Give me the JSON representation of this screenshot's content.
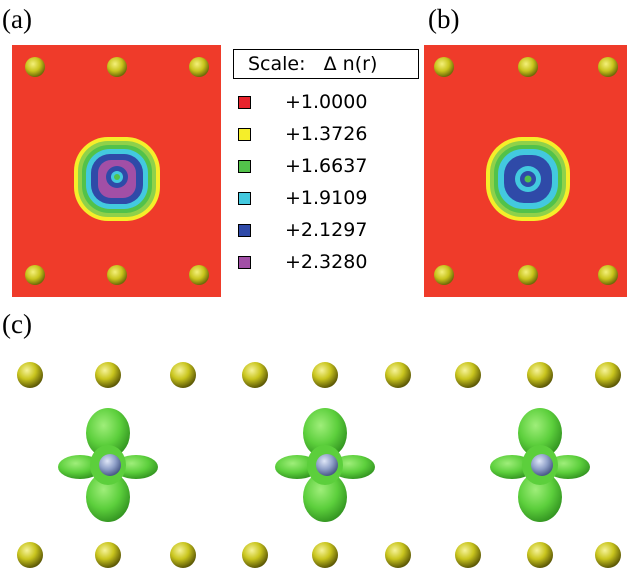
{
  "panels": {
    "a": {
      "label": "(a)"
    },
    "b": {
      "label": "(b)"
    },
    "c": {
      "label": "(c)"
    }
  },
  "legend": {
    "title": "Scale:   Δ n(r)",
    "entries": [
      {
        "value": "+1.0000",
        "color": "#e8232c"
      },
      {
        "value": "+1.3726",
        "color": "#f5ee2a"
      },
      {
        "value": "+1.6637",
        "color": "#52c24a"
      },
      {
        "value": "+1.9109",
        "color": "#43c9df"
      },
      {
        "value": "+2.1297",
        "color": "#2f4aa8"
      },
      {
        "value": "+2.3280",
        "color": "#a24fa6"
      }
    ]
  },
  "colors": {
    "map_background": "#ef3b2a",
    "atom_yellow": "#c8c41c",
    "impurity_blue": "#8fa0c8",
    "isosurface_green": "#5ccf3c"
  }
}
